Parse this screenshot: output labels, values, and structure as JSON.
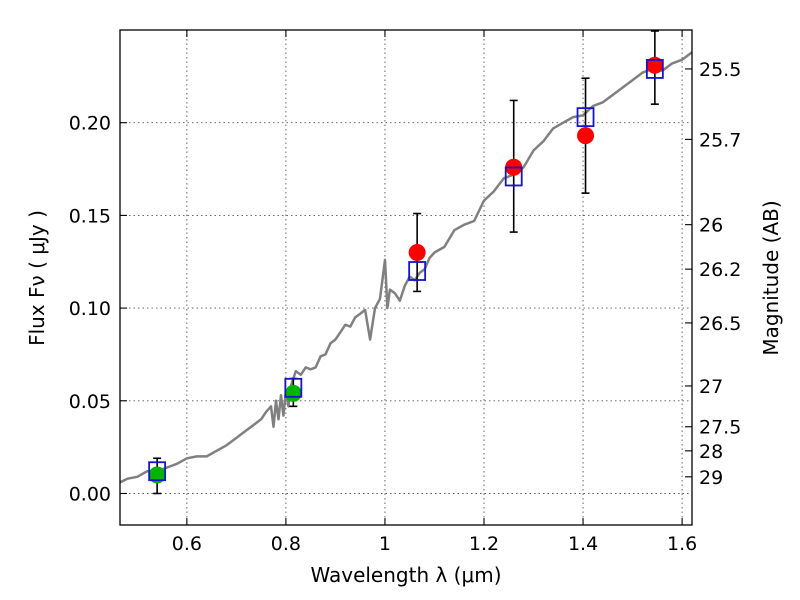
{
  "chart_data": {
    "type": "scatter",
    "xlabel": "Wavelength  λ (μm)",
    "ylabel": "Flux  Fν  ( μJy )",
    "ylabel_right": "Magnitude (AB)",
    "xlim": [
      0.465,
      1.62
    ],
    "ylim": [
      -0.017,
      0.25
    ],
    "grid": true,
    "x_ticks": [
      0.6,
      0.8,
      1.0,
      1.2,
      1.4,
      1.6
    ],
    "x_tick_labels": [
      "0.6",
      "0.8",
      "1",
      "1.2",
      "1.4",
      "1.6"
    ],
    "y_ticks": [
      0.0,
      0.05,
      0.1,
      0.15,
      0.2
    ],
    "y_tick_labels": [
      "0.00",
      "0.05",
      "0.10",
      "0.15",
      "0.20"
    ],
    "right_ticks": [
      {
        "label": "25.5",
        "flux": 0.229
      },
      {
        "label": "25.7",
        "flux": 0.191
      },
      {
        "label": "26",
        "flux": 0.145
      },
      {
        "label": "26.2",
        "flux": 0.121
      },
      {
        "label": "26.5",
        "flux": 0.092
      },
      {
        "label": "27",
        "flux": 0.058
      },
      {
        "label": "27.5",
        "flux": 0.036
      },
      {
        "label": "28",
        "flux": 0.023
      },
      {
        "label": "29",
        "flux": 0.009
      }
    ],
    "series": [
      {
        "name": "spectrum",
        "kind": "line",
        "color": "#808080",
        "x": [
          0.465,
          0.48,
          0.5,
          0.52,
          0.54,
          0.56,
          0.58,
          0.6,
          0.62,
          0.64,
          0.66,
          0.68,
          0.7,
          0.72,
          0.74,
          0.75,
          0.76,
          0.77,
          0.775,
          0.78,
          0.785,
          0.79,
          0.795,
          0.8,
          0.805,
          0.81,
          0.82,
          0.83,
          0.84,
          0.85,
          0.86,
          0.87,
          0.88,
          0.89,
          0.9,
          0.91,
          0.92,
          0.93,
          0.94,
          0.95,
          0.96,
          0.97,
          0.98,
          0.99,
          1.0,
          1.005,
          1.01,
          1.02,
          1.03,
          1.04,
          1.05,
          1.06,
          1.07,
          1.08,
          1.09,
          1.1,
          1.12,
          1.14,
          1.16,
          1.18,
          1.2,
          1.22,
          1.24,
          1.26,
          1.28,
          1.3,
          1.32,
          1.34,
          1.36,
          1.38,
          1.4,
          1.42,
          1.44,
          1.46,
          1.48,
          1.5,
          1.52,
          1.54,
          1.56,
          1.58,
          1.6,
          1.62
        ],
        "y": [
          0.006,
          0.008,
          0.009,
          0.012,
          0.012,
          0.014,
          0.016,
          0.019,
          0.02,
          0.02,
          0.023,
          0.026,
          0.03,
          0.034,
          0.038,
          0.04,
          0.044,
          0.047,
          0.036,
          0.05,
          0.04,
          0.053,
          0.042,
          0.055,
          0.047,
          0.058,
          0.066,
          0.064,
          0.068,
          0.067,
          0.068,
          0.074,
          0.075,
          0.081,
          0.083,
          0.087,
          0.091,
          0.09,
          0.095,
          0.097,
          0.099,
          0.083,
          0.1,
          0.105,
          0.126,
          0.1,
          0.11,
          0.108,
          0.104,
          0.112,
          0.117,
          0.115,
          0.119,
          0.121,
          0.127,
          0.13,
          0.133,
          0.142,
          0.145,
          0.147,
          0.158,
          0.163,
          0.17,
          0.172,
          0.176,
          0.185,
          0.19,
          0.197,
          0.2,
          0.203,
          0.204,
          0.209,
          0.211,
          0.215,
          0.219,
          0.223,
          0.227,
          0.229,
          0.228,
          0.232,
          0.234,
          0.238
        ]
      },
      {
        "name": "model (open squares)",
        "kind": "marker",
        "color": "#1414c8",
        "x": [
          0.54,
          0.815,
          1.065,
          1.26,
          1.405,
          1.545
        ],
        "y": [
          0.012,
          0.057,
          0.12,
          0.171,
          0.203,
          0.229
        ]
      },
      {
        "name": "observed (green)",
        "kind": "marker",
        "color": "#00b400",
        "x": [
          0.54,
          0.815
        ],
        "y": [
          0.01,
          0.054
        ],
        "err": [
          [
            0.0,
            0.019
          ],
          [
            0.047,
            0.062
          ]
        ]
      },
      {
        "name": "observed (red)",
        "kind": "marker",
        "color": "#ff0000",
        "x": [
          1.065,
          1.26,
          1.405,
          1.545
        ],
        "y": [
          0.13,
          0.176,
          0.193,
          0.231
        ],
        "err": [
          [
            0.109,
            0.151
          ],
          [
            0.141,
            0.212
          ],
          [
            0.162,
            0.224
          ],
          [
            0.21,
            0.25
          ]
        ]
      }
    ]
  }
}
